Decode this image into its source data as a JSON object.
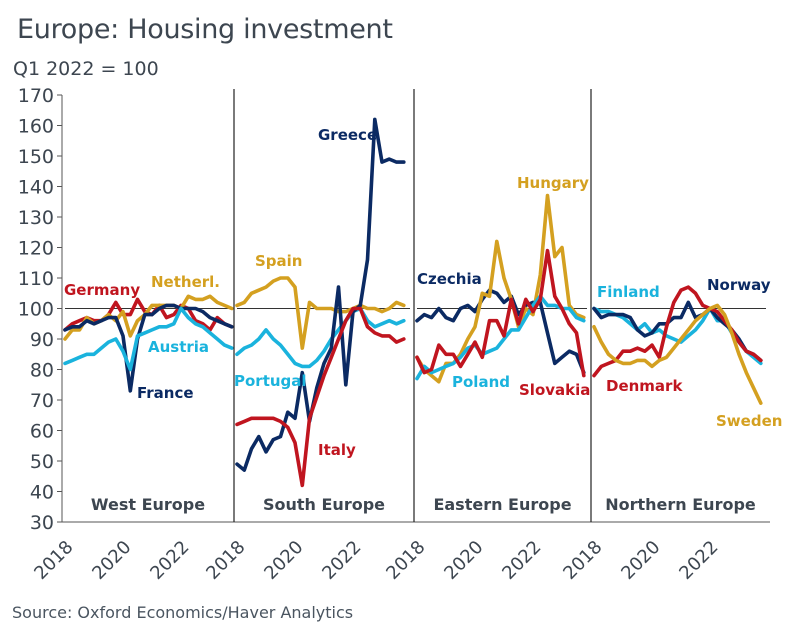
{
  "header": {
    "title": "Europe: Housing investment",
    "subtitle": "Q1 2022 = 100"
  },
  "footer": {
    "source": "Source: Oxford Economics/Haver Analytics"
  },
  "colors": {
    "navy": "#0b2a63",
    "red": "#c0151f",
    "gold": "#d4a020",
    "cyan": "#1ab3dd"
  },
  "chart_data": {
    "type": "line",
    "title": "Europe: Housing investment",
    "subtitle": "Q1 2022 = 100",
    "ylabel": "",
    "xlabel": "",
    "ylim": [
      30,
      170
    ],
    "yticks": [
      30,
      40,
      50,
      60,
      70,
      80,
      90,
      100,
      110,
      120,
      130,
      140,
      150,
      160,
      170
    ],
    "xticks": [
      "2018",
      "2020",
      "2022"
    ],
    "reference_line": 100,
    "frequency": "quarterly",
    "x_start": "2018Q1",
    "panels": [
      {
        "name": "West Europe",
        "series": [
          {
            "name": "Germany",
            "color": "#c0151f",
            "values": [
              93,
              95,
              96,
              97,
              96,
              96,
              98,
              102,
              98,
              98,
              103,
              99,
              98,
              101,
              97,
              98,
              101,
              100,
              96,
              95,
              93,
              97,
              95,
              94
            ]
          },
          {
            "name": "Netherl.",
            "color": "#d4a020",
            "values": [
              90,
              93,
              93,
              97,
              95,
              96,
              98,
              96,
              99,
              91,
              96,
              98,
              101,
              101,
              101,
              101,
              100,
              104,
              103,
              103,
              104,
              102,
              101,
              100
            ]
          },
          {
            "name": "France",
            "color": "#0b2a63",
            "values": [
              93,
              94,
              94,
              96,
              95,
              96,
              97,
              97,
              91,
              73,
              90,
              98,
              98,
              100,
              101,
              101,
              100,
              100,
              100,
              99,
              97,
              96,
              95,
              94
            ]
          },
          {
            "name": "Austria",
            "color": "#1ab3dd",
            "values": [
              82,
              83,
              84,
              85,
              85,
              87,
              89,
              90,
              86,
              80,
              91,
              92,
              93,
              94,
              94,
              95,
              100,
              97,
              95,
              94,
              92,
              90,
              88,
              87
            ]
          }
        ]
      },
      {
        "name": "South Europe",
        "series": [
          {
            "name": "Spain",
            "color": "#d4a020",
            "values": [
              101,
              102,
              105,
              106,
              107,
              109,
              110,
              110,
              107,
              87,
              102,
              100,
              100,
              100,
              99,
              99,
              100,
              101,
              100,
              100,
              99,
              100,
              102,
              101
            ]
          },
          {
            "name": "Portugal",
            "color": "#1ab3dd",
            "values": [
              85,
              87,
              88,
              90,
              93,
              90,
              88,
              85,
              82,
              81,
              81,
              83,
              86,
              90,
              93,
              96,
              99,
              100,
              96,
              94,
              95,
              96,
              95,
              96
            ]
          },
          {
            "name": "Greece",
            "color": "#0b2a63",
            "values": [
              49,
              47,
              54,
              58,
              53,
              57,
              58,
              66,
              64,
              79,
              63,
              74,
              82,
              87,
              107,
              75,
              99,
              101,
              116,
              162,
              148,
              149,
              148,
              148
            ]
          },
          {
            "name": "Italy",
            "color": "#c0151f",
            "values": [
              62,
              63,
              64,
              64,
              64,
              64,
              63,
              61,
              56,
              42,
              64,
              71,
              78,
              84,
              90,
              96,
              100,
              100,
              94,
              92,
              91,
              91,
              89,
              90
            ]
          }
        ]
      },
      {
        "name": "Eastern Europe",
        "series": [
          {
            "name": "Czechia",
            "color": "#0b2a63",
            "values": [
              96,
              98,
              97,
              100,
              97,
              96,
              100,
              101,
              99,
              103,
              106,
              105,
              102,
              104,
              98,
              101,
              102,
              102,
              92,
              82,
              84,
              86,
              85,
              79
            ]
          },
          {
            "name": "Hungary",
            "color": "#d4a020",
            "values": [
              84,
              80,
              78,
              76,
              82,
              82,
              85,
              90,
              94,
              105,
              104,
              122,
              110,
              103,
              94,
              100,
              98,
              111,
              137,
              117,
              120,
              101,
              98,
              97
            ]
          },
          {
            "name": "Poland",
            "color": "#1ab3dd",
            "values": [
              77,
              81,
              79,
              80,
              81,
              82,
              84,
              87,
              88,
              85,
              86,
              87,
              90,
              93,
              93,
              97,
              101,
              104,
              101,
              101,
              100,
              100,
              97,
              96
            ]
          },
          {
            "name": "Slovakia",
            "color": "#c0151f",
            "values": [
              84,
              79,
              80,
              88,
              85,
              85,
              81,
              85,
              89,
              84,
              96,
              96,
              91,
              103,
              95,
              103,
              99,
              103,
              119,
              104,
              100,
              95,
              92,
              78
            ]
          }
        ]
      },
      {
        "name": "Northern Europe",
        "series": [
          {
            "name": "Finland",
            "color": "#1ab3dd",
            "values": [
              100,
              99,
              99,
              98,
              97,
              95,
              93,
              95,
              92,
              93,
              91,
              90,
              89,
              91,
              93,
              96,
              100,
              96,
              96,
              92,
              89,
              86,
              84,
              82
            ]
          },
          {
            "name": "Norway",
            "color": "#0b2a63",
            "values": [
              100,
              97,
              98,
              98,
              98,
              97,
              93,
              91,
              92,
              95,
              95,
              97,
              97,
              102,
              97,
              98,
              100,
              97,
              95,
              93,
              90,
              86,
              85,
              83
            ]
          },
          {
            "name": "Denmark",
            "color": "#c0151f",
            "values": [
              78,
              81,
              82,
              83,
              86,
              86,
              87,
              86,
              88,
              84,
              94,
              102,
              106,
              107,
              105,
              101,
              100,
              99,
              96,
              93,
              89,
              86,
              85,
              83
            ]
          },
          {
            "name": "Sweden",
            "color": "#d4a020",
            "values": [
              94,
              89,
              85,
              83,
              82,
              82,
              83,
              83,
              81,
              83,
              84,
              87,
              90,
              93,
              96,
              98,
              100,
              101,
              98,
              92,
              85,
              79,
              74,
              69
            ]
          }
        ]
      }
    ]
  }
}
